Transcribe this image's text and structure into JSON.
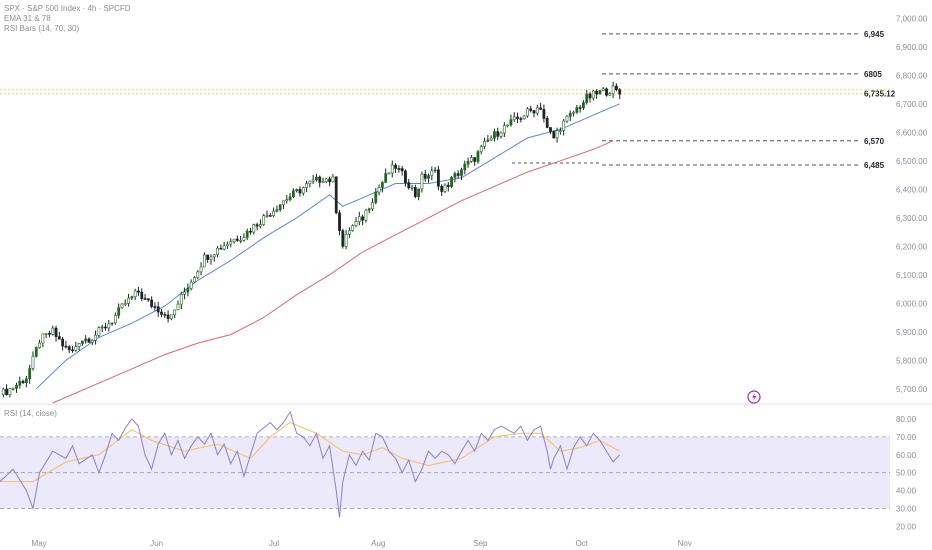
{
  "legend": {
    "line1": "SPX · S&P 500 Index · 4h · SPCFD",
    "line2": "EMA 31 & 78",
    "line3": "RSI Bars (14, 70, 30)",
    "rsi_title": "RSI (14, close)"
  },
  "colors": {
    "up": "#1e6b1e",
    "down": "#1f2329",
    "ema_fast": "#5b87d6",
    "ema_slow": "#e06666",
    "rsi": "#8b7fd0",
    "rsi_ma": "#f0c35a",
    "rsi_band": "#ece9fa",
    "level": "#555555",
    "price_line": "#f3d36a",
    "lightning": "#9b2fae"
  },
  "icons": {
    "lightning": "lightning-icon"
  },
  "chart_data": [
    {
      "type": "candlestick",
      "title": "SPX · S&P 500 Index · 4h · SPCFD",
      "ylim": [
        5650,
        7050
      ],
      "yticks": [
        "7,000.00",
        "6,900.00",
        "6,800.00",
        "6,700.00",
        "6,600.00",
        "6,500.00",
        "6,400.00",
        "6,300.00",
        "6,200.00",
        "6,100.00",
        "6,000.00",
        "5,900.00",
        "5,800.00",
        "5,700.00"
      ],
      "ytick_values": [
        7000,
        6900,
        6800,
        6700,
        6600,
        6500,
        6400,
        6300,
        6200,
        6100,
        6000,
        5900,
        5800,
        5700
      ],
      "x_labels": [
        "May",
        "Jun",
        "Jul",
        "Aug",
        "Sep",
        "Oct",
        "Nov"
      ],
      "last_price": "6,735.12",
      "last_price_value": 6735.12,
      "levels": [
        {
          "label": "6,945",
          "value": 6945
        },
        {
          "label": "6805",
          "value": 6805
        },
        {
          "label": "6,570",
          "value": 6570
        },
        {
          "label": "6,485",
          "value": 6485
        }
      ],
      "price_path": [
        [
          0,
          5680
        ],
        [
          4,
          5705
        ],
        [
          8,
          5740
        ],
        [
          10,
          5800
        ],
        [
          12,
          5870
        ],
        [
          16,
          5900
        ],
        [
          20,
          5840
        ],
        [
          22,
          5830
        ],
        [
          24,
          5870
        ],
        [
          28,
          5880
        ],
        [
          30,
          5900
        ],
        [
          34,
          5940
        ],
        [
          38,
          6000
        ],
        [
          42,
          6040
        ],
        [
          44,
          6010
        ],
        [
          48,
          5980
        ],
        [
          52,
          5950
        ],
        [
          54,
          6000
        ],
        [
          58,
          6080
        ],
        [
          62,
          6160
        ],
        [
          66,
          6190
        ],
        [
          70,
          6220
        ],
        [
          74,
          6240
        ],
        [
          78,
          6280
        ],
        [
          82,
          6320
        ],
        [
          86,
          6360
        ],
        [
          90,
          6390
        ],
        [
          94,
          6420
        ],
        [
          98,
          6440
        ],
        [
          101,
          6430
        ],
        [
          102,
          6330
        ],
        [
          104,
          6200
        ],
        [
          106,
          6260
        ],
        [
          110,
          6300
        ],
        [
          114,
          6390
        ],
        [
          118,
          6460
        ],
        [
          120,
          6480
        ],
        [
          124,
          6420
        ],
        [
          126,
          6380
        ],
        [
          128,
          6440
        ],
        [
          132,
          6460
        ],
        [
          134,
          6390
        ],
        [
          136,
          6420
        ],
        [
          140,
          6470
        ],
        [
          144,
          6510
        ],
        [
          148,
          6570
        ],
        [
          152,
          6610
        ],
        [
          156,
          6640
        ],
        [
          160,
          6670
        ],
        [
          164,
          6690
        ],
        [
          166,
          6610
        ],
        [
          168,
          6580
        ],
        [
          170,
          6620
        ],
        [
          174,
          6670
        ],
        [
          178,
          6720
        ],
        [
          182,
          6740
        ],
        [
          186,
          6750
        ],
        [
          188,
          6735
        ]
      ],
      "series": [
        {
          "name": "EMA 31",
          "values": [
            [
              11,
              5700
            ],
            [
              20,
              5800
            ],
            [
              30,
              5880
            ],
            [
              40,
              5930
            ],
            [
              50,
              5990
            ],
            [
              60,
              6080
            ],
            [
              70,
              6150
            ],
            [
              80,
              6230
            ],
            [
              90,
              6300
            ],
            [
              100,
              6380
            ],
            [
              104,
              6340
            ],
            [
              110,
              6370
            ],
            [
              120,
              6420
            ],
            [
              130,
              6420
            ],
            [
              140,
              6440
            ],
            [
              150,
              6510
            ],
            [
              160,
              6580
            ],
            [
              170,
              6610
            ],
            [
              180,
              6660
            ],
            [
              188,
              6700
            ]
          ]
        },
        {
          "name": "EMA 78",
          "values": [
            [
              16,
              5650
            ],
            [
              30,
              5720
            ],
            [
              40,
              5770
            ],
            [
              50,
              5820
            ],
            [
              60,
              5860
            ],
            [
              70,
              5890
            ],
            [
              80,
              5950
            ],
            [
              90,
              6030
            ],
            [
              100,
              6100
            ],
            [
              110,
              6180
            ],
            [
              120,
              6240
            ],
            [
              130,
              6300
            ],
            [
              140,
              6360
            ],
            [
              150,
              6410
            ],
            [
              160,
              6460
            ],
            [
              170,
              6500
            ],
            [
              180,
              6540
            ],
            [
              186,
              6570
            ]
          ]
        }
      ]
    },
    {
      "type": "line",
      "title": "RSI (14, close)",
      "ylim": [
        18,
        85
      ],
      "yticks": [
        "80.00",
        "70.00",
        "60.00",
        "50.00",
        "40.00",
        "30.00",
        "20.00"
      ],
      "ytick_values": [
        80,
        70,
        60,
        50,
        40,
        30,
        20
      ],
      "bands": [
        {
          "value": 70
        },
        {
          "value": 50
        },
        {
          "value": 30
        }
      ],
      "series": [
        {
          "name": "RSI",
          "values": [
            [
              0,
              45
            ],
            [
              4,
              52
            ],
            [
              8,
              40
            ],
            [
              10,
              30
            ],
            [
              12,
              50
            ],
            [
              16,
              62
            ],
            [
              20,
              58
            ],
            [
              22,
              65
            ],
            [
              24,
              55
            ],
            [
              28,
              60
            ],
            [
              30,
              50
            ],
            [
              32,
              60
            ],
            [
              34,
              72
            ],
            [
              36,
              68
            ],
            [
              38,
              75
            ],
            [
              40,
              80
            ],
            [
              42,
              76
            ],
            [
              44,
              60
            ],
            [
              46,
              52
            ],
            [
              48,
              66
            ],
            [
              50,
              72
            ],
            [
              52,
              60
            ],
            [
              54,
              68
            ],
            [
              56,
              58
            ],
            [
              58,
              65
            ],
            [
              60,
              70
            ],
            [
              62,
              66
            ],
            [
              64,
              72
            ],
            [
              66,
              60
            ],
            [
              68,
              66
            ],
            [
              70,
              55
            ],
            [
              72,
              62
            ],
            [
              74,
              48
            ],
            [
              76,
              60
            ],
            [
              78,
              72
            ],
            [
              80,
              75
            ],
            [
              82,
              78
            ],
            [
              84,
              74
            ],
            [
              86,
              78
            ],
            [
              88,
              84
            ],
            [
              90,
              72
            ],
            [
              92,
              70
            ],
            [
              94,
              65
            ],
            [
              96,
              72
            ],
            [
              98,
              58
            ],
            [
              100,
              65
            ],
            [
              102,
              40
            ],
            [
              103,
              25
            ],
            [
              104,
              45
            ],
            [
              106,
              60
            ],
            [
              108,
              54
            ],
            [
              110,
              62
            ],
            [
              112,
              57
            ],
            [
              114,
              72
            ],
            [
              116,
              70
            ],
            [
              118,
              62
            ],
            [
              120,
              58
            ],
            [
              122,
              50
            ],
            [
              124,
              57
            ],
            [
              126,
              45
            ],
            [
              128,
              52
            ],
            [
              130,
              62
            ],
            [
              132,
              58
            ],
            [
              134,
              62
            ],
            [
              136,
              60
            ],
            [
              138,
              55
            ],
            [
              140,
              62
            ],
            [
              142,
              68
            ],
            [
              144,
              62
            ],
            [
              146,
              72
            ],
            [
              148,
              68
            ],
            [
              150,
              74
            ],
            [
              152,
              76
            ],
            [
              154,
              74
            ],
            [
              156,
              72
            ],
            [
              158,
              76
            ],
            [
              160,
              68
            ],
            [
              162,
              74
            ],
            [
              164,
              76
            ],
            [
              166,
              62
            ],
            [
              167,
              52
            ],
            [
              168,
              58
            ],
            [
              170,
              65
            ],
            [
              172,
              52
            ],
            [
              174,
              64
            ],
            [
              176,
              70
            ],
            [
              178,
              65
            ],
            [
              180,
              72
            ],
            [
              182,
              68
            ],
            [
              184,
              62
            ],
            [
              186,
              56
            ],
            [
              188,
              60
            ]
          ]
        },
        {
          "name": "RSI MA",
          "values": [
            [
              0,
              45
            ],
            [
              10,
              45
            ],
            [
              20,
              56
            ],
            [
              30,
              60
            ],
            [
              40,
              74
            ],
            [
              46,
              68
            ],
            [
              56,
              62
            ],
            [
              66,
              66
            ],
            [
              76,
              58
            ],
            [
              82,
              70
            ],
            [
              88,
              78
            ],
            [
              96,
              72
            ],
            [
              104,
              62
            ],
            [
              110,
              60
            ],
            [
              116,
              64
            ],
            [
              122,
              58
            ],
            [
              130,
              54
            ],
            [
              140,
              58
            ],
            [
              150,
              70
            ],
            [
              158,
              72
            ],
            [
              164,
              72
            ],
            [
              170,
              62
            ],
            [
              176,
              64
            ],
            [
              182,
              68
            ],
            [
              188,
              62
            ]
          ]
        }
      ]
    }
  ]
}
